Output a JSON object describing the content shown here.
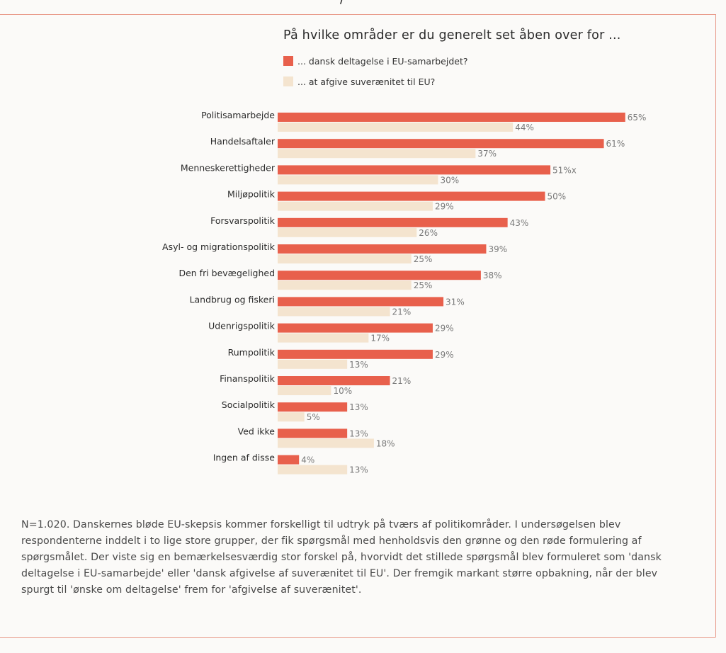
{
  "top_fragment": "/ ",
  "chart_data": {
    "type": "bar",
    "orientation": "horizontal",
    "title": "På hvilke områder er du generelt set åben over for ...",
    "categories": [
      "Politisamarbejde",
      "Handelsaftaler",
      "Menneskerettigheder",
      "Miljøpolitik",
      "Forsvarspolitik",
      "Asyl- og migrationspolitik",
      "Den fri bevægelighed",
      "Landbrug og fiskeri",
      "Udenrigspolitik",
      "Rumpolitik",
      "Finanspolitik",
      "Socialpolitik",
      "Ved ikke",
      "Ingen af disse"
    ],
    "series": [
      {
        "name": "... dansk deltagelse i EU-samarbejdet?",
        "color": "#e8604c",
        "values": [
          65,
          61,
          51,
          50,
          43,
          39,
          38,
          31,
          29,
          29,
          21,
          13,
          13,
          4
        ],
        "labels": [
          "65%",
          "61%",
          "51%x",
          "50%",
          "43%",
          "39%",
          "38%",
          "31%",
          "29%",
          "29%",
          "21%",
          "13%",
          "13%",
          "4%"
        ]
      },
      {
        "name": "... at afgive suverænitet til EU?",
        "color": "#f4e4cf",
        "values": [
          44,
          37,
          30,
          29,
          26,
          25,
          25,
          21,
          17,
          13,
          10,
          5,
          18,
          13
        ],
        "labels": [
          "44%",
          "37%",
          "30%",
          "29%",
          "26%",
          "25%",
          "25%",
          "21%",
          "17%",
          "13%",
          "10%",
          "5%",
          "18%",
          "13%"
        ]
      }
    ],
    "xlim": [
      0,
      65
    ],
    "grid": false,
    "legend": "top"
  },
  "caption": "N=1.020. Danskernes bløde EU-skepsis kommer forskelligt til udtryk på tværs af politikområder. I undersøgelsen blev respondenterne inddelt i to lige store grupper, der fik spørgsmål med henholdsvis den grønne og den røde formulering af spørgsmålet. Der viste sig en bemærkelsesværdig stor forskel på, hvorvidt det stillede spørgsmål blev formuleret som 'dansk deltagelse i EU-samarbejde' eller 'dansk afgivelse af suverænitet til EU'. Der fremgik markant større opbakning, når der blev spurgt til 'ønske om deltagelse' frem for 'afgivelse af suverænitet'."
}
